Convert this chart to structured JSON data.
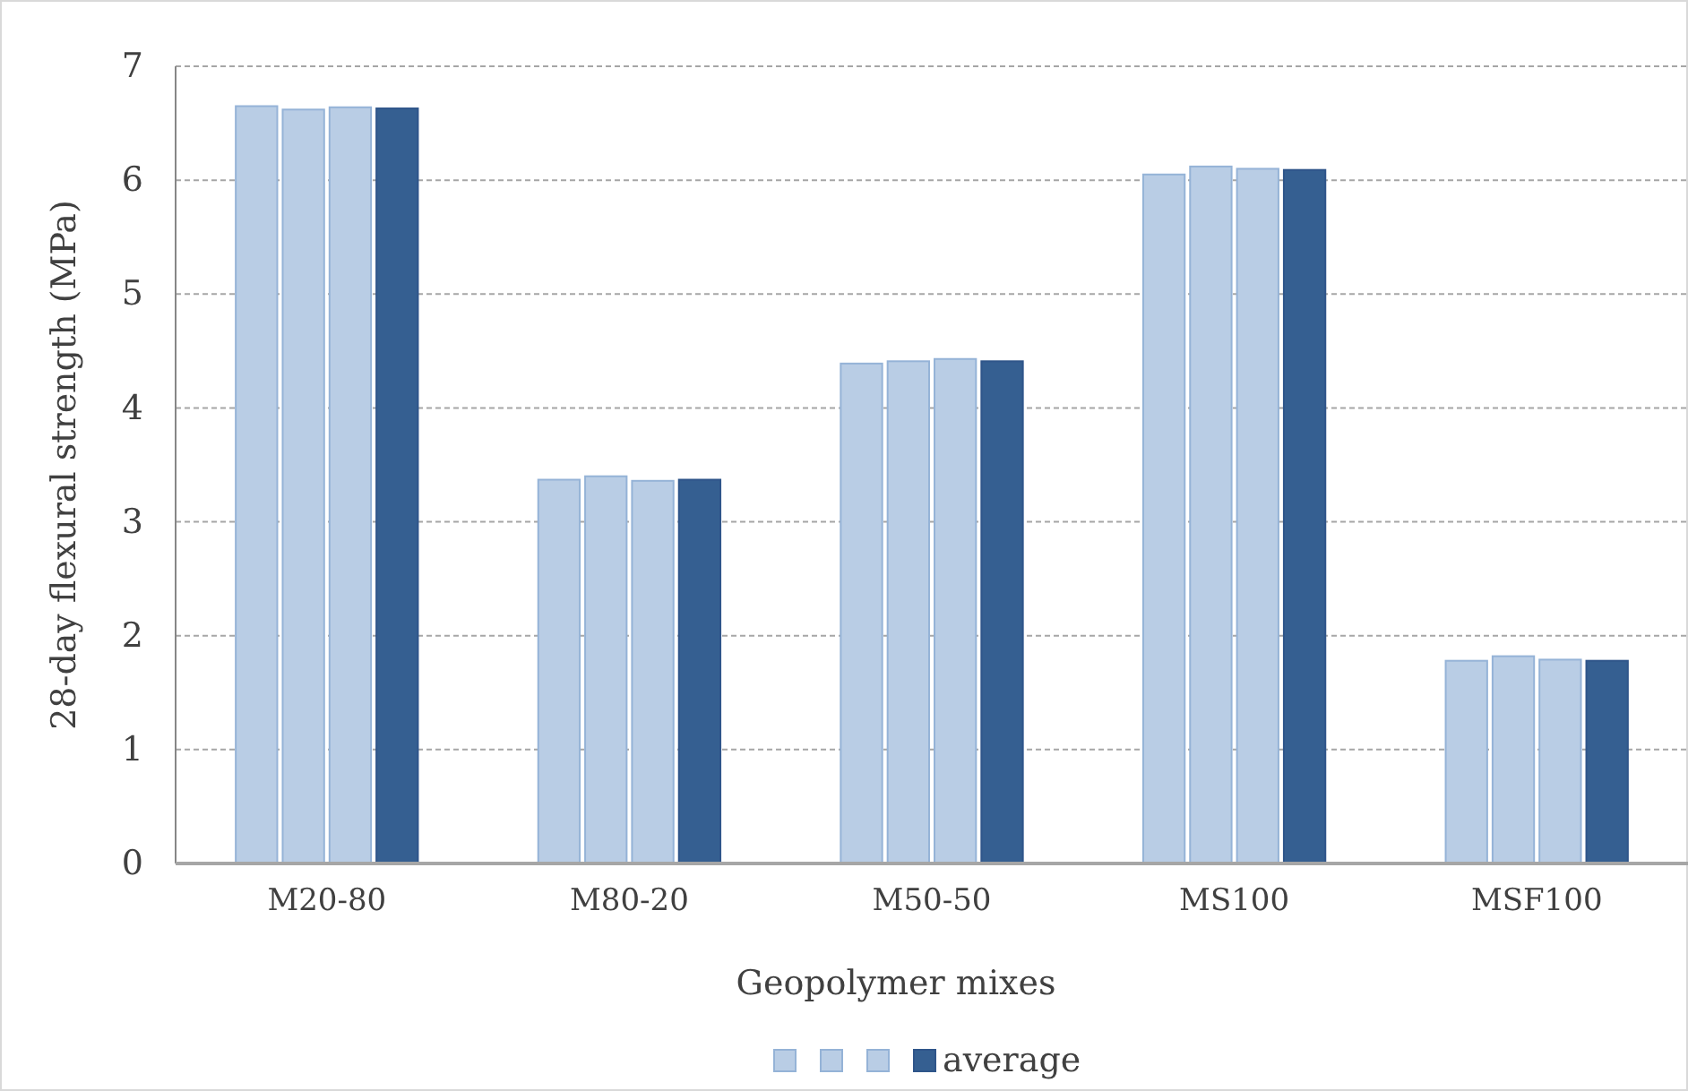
{
  "chart_data": {
    "type": "bar",
    "xlabel": "Geopolymer mixes",
    "ylabel": "28-day flexural strength (MPa)",
    "categories": [
      "M20-80",
      "M80-20",
      "M50-50",
      "MS100",
      "MSF100"
    ],
    "series": [
      {
        "color": "#b9cde5",
        "values": [
          6.65,
          3.37,
          4.39,
          6.05,
          1.78
        ]
      },
      {
        "color": "#b9cde5",
        "values": [
          6.62,
          3.4,
          4.41,
          6.12,
          1.82
        ]
      },
      {
        "color": "#b9cde5",
        "values": [
          6.64,
          3.36,
          4.43,
          6.1,
          1.79
        ]
      },
      {
        "name": "average",
        "color": "#355f91",
        "values": [
          6.63,
          3.37,
          4.41,
          6.09,
          1.78
        ]
      }
    ],
    "ylim": [
      0,
      7
    ],
    "yticks": [
      0,
      1,
      2,
      3,
      4,
      5,
      6,
      7
    ],
    "grid": "y",
    "legend": "bottom"
  }
}
